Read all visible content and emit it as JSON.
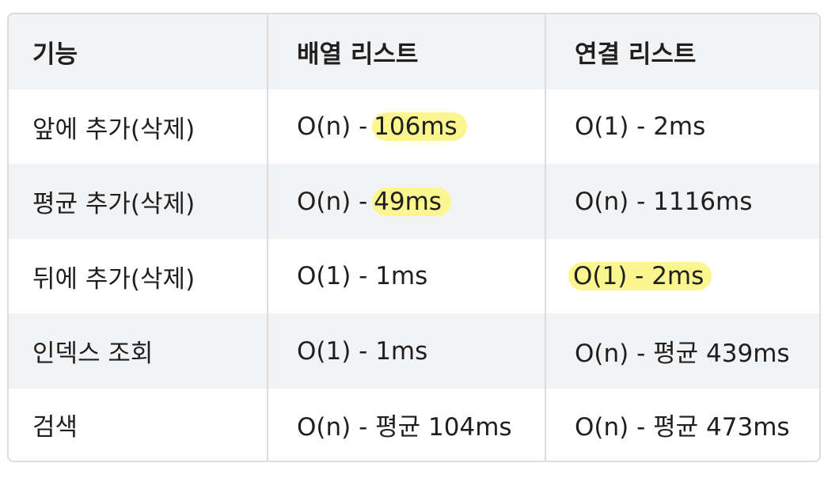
{
  "table": {
    "headers": [
      "기능",
      "배열 리스트",
      "연결 리스트"
    ],
    "rows": [
      {
        "feature": "앞에 추가(삭제)",
        "array_prefix": "O(n) - ",
        "array_value": "106ms",
        "linked_value": "O(1) - 2ms"
      },
      {
        "feature": "평균 추가(삭제)",
        "array_prefix": "O(n) - ",
        "array_value": "49ms",
        "linked_value": "O(n) - 1116ms"
      },
      {
        "feature": "뒤에 추가(삭제)",
        "array_value": "O(1) - 1ms",
        "linked_value": "O(1) - 2ms"
      },
      {
        "feature": "인덱스 조회",
        "array_value": "O(1) - 1ms",
        "linked_value": "O(n) - 평균 439ms"
      },
      {
        "feature": "검색",
        "array_value": "O(n) - 평균 104ms",
        "linked_value": "O(n) - 평균 473ms"
      }
    ]
  },
  "colors": {
    "header_bg": "#f2f3f5",
    "border": "#dddddd",
    "highlight": "#fbf68d",
    "text": "#1f1f1f"
  }
}
